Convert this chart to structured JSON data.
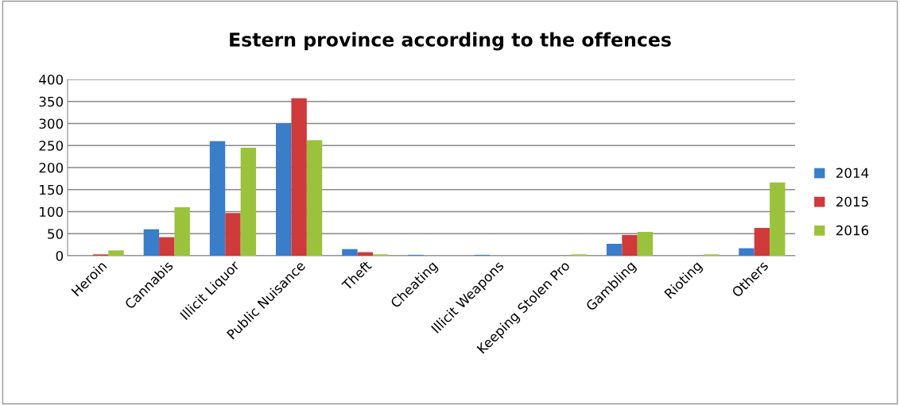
{
  "chart_data": {
    "type": "bar",
    "title": "Estern province according to the offences",
    "categories": [
      "Heroin",
      "Cannabis",
      "Illicit Liquor",
      "Public Nuisance",
      "Theft",
      "Cheating",
      "Illicit Weapons",
      "Keeping Stolen Pro",
      "Gambling",
      "Rioting",
      "Others"
    ],
    "series": [
      {
        "name": "2014",
        "color": "#3a7dc9",
        "values": [
          0,
          60,
          260,
          300,
          15,
          2,
          2,
          0,
          27,
          0,
          17
        ]
      },
      {
        "name": "2015",
        "color": "#cf3a3a",
        "values": [
          3,
          42,
          97,
          357,
          8,
          0,
          0,
          0,
          47,
          0,
          63
        ]
      },
      {
        "name": "2016",
        "color": "#9bc23c",
        "values": [
          12,
          110,
          245,
          262,
          3,
          0,
          0,
          3,
          54,
          3,
          166
        ]
      }
    ],
    "ylim": [
      0,
      400
    ],
    "yticks": [
      0,
      50,
      100,
      150,
      200,
      250,
      300,
      350,
      400
    ],
    "grid": "y",
    "legend": "right"
  }
}
